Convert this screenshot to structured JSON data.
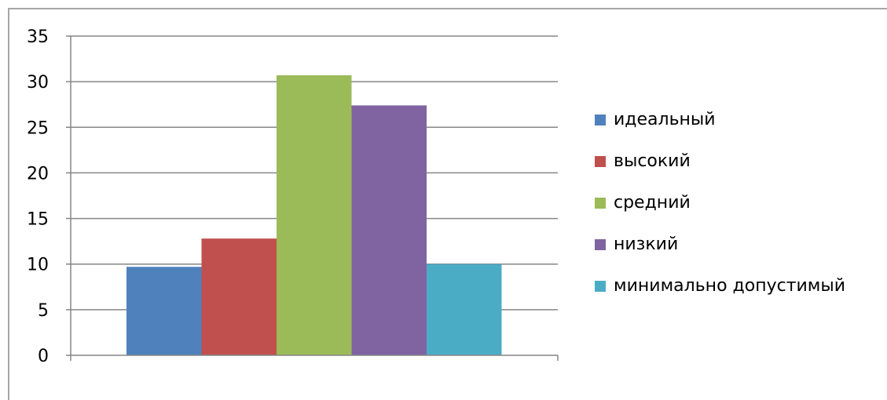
{
  "chart_data": {
    "type": "bar",
    "ylim": [
      0,
      35
    ],
    "yticks": [
      "0",
      "5",
      "10",
      "15",
      "20",
      "25",
      "30",
      "35"
    ],
    "grid": true,
    "legend_position": "right",
    "series": [
      {
        "name": "идеальный",
        "value": 9.7,
        "color": "#4f81bd"
      },
      {
        "name": "высокий",
        "value": 12.8,
        "color": "#c0504d"
      },
      {
        "name": "средний",
        "value": 30.7,
        "color": "#9bbb59"
      },
      {
        "name": "низкий",
        "value": 27.4,
        "color": "#8064a2"
      },
      {
        "name": "минимально допустимый",
        "value": 10,
        "color": "#4bacc6"
      }
    ]
  }
}
